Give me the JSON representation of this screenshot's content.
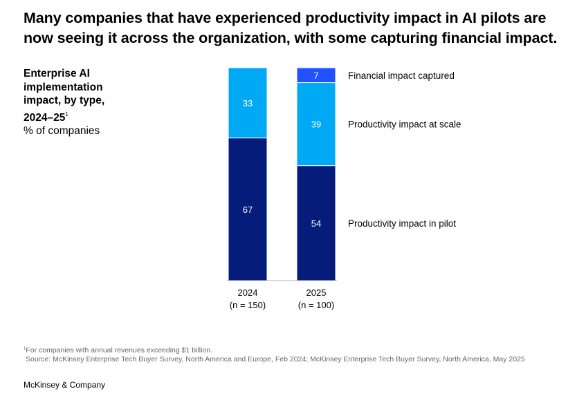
{
  "headline": "Many companies that have experienced productivity impact in AI pilots are now seeing it across the organization, with some capturing financial impact.",
  "subtitle": {
    "title_bold": "Enterprise AI implementation impact, by type, 2024–25",
    "footnote_marker": "1",
    "unit": "% of companies"
  },
  "colors": {
    "financial": "#2251ff",
    "scale": "#00a9f4",
    "pilot": "#051c7b",
    "label_text": "#ffffff"
  },
  "chart_data": {
    "type": "bar",
    "stacked": true,
    "title": "Enterprise AI implementation impact, by type, 2024–25",
    "ylabel": "% of companies",
    "ylim": [
      0,
      100
    ],
    "categories": [
      "2024",
      "2025"
    ],
    "category_sublabels": [
      "(n = 150)",
      "(n = 100)"
    ],
    "series": [
      {
        "name": "Productivity impact in pilot",
        "values": [
          67,
          54
        ]
      },
      {
        "name": "Productivity impact at scale",
        "values": [
          33,
          39
        ]
      },
      {
        "name": "Financial impact captured",
        "values": [
          null,
          7
        ]
      }
    ],
    "legend_position": "right"
  },
  "footnote": {
    "marker": "1",
    "text": "For companies with annual revenues exceeding $1 billion.",
    "source": "Source: McKinsey Enterprise Tech Buyer Survey, North America and Europe, Feb 2024; McKinsey Enterprise Tech Buyer Survey, North America, May 2025"
  },
  "brand": "McKinsey & Company"
}
